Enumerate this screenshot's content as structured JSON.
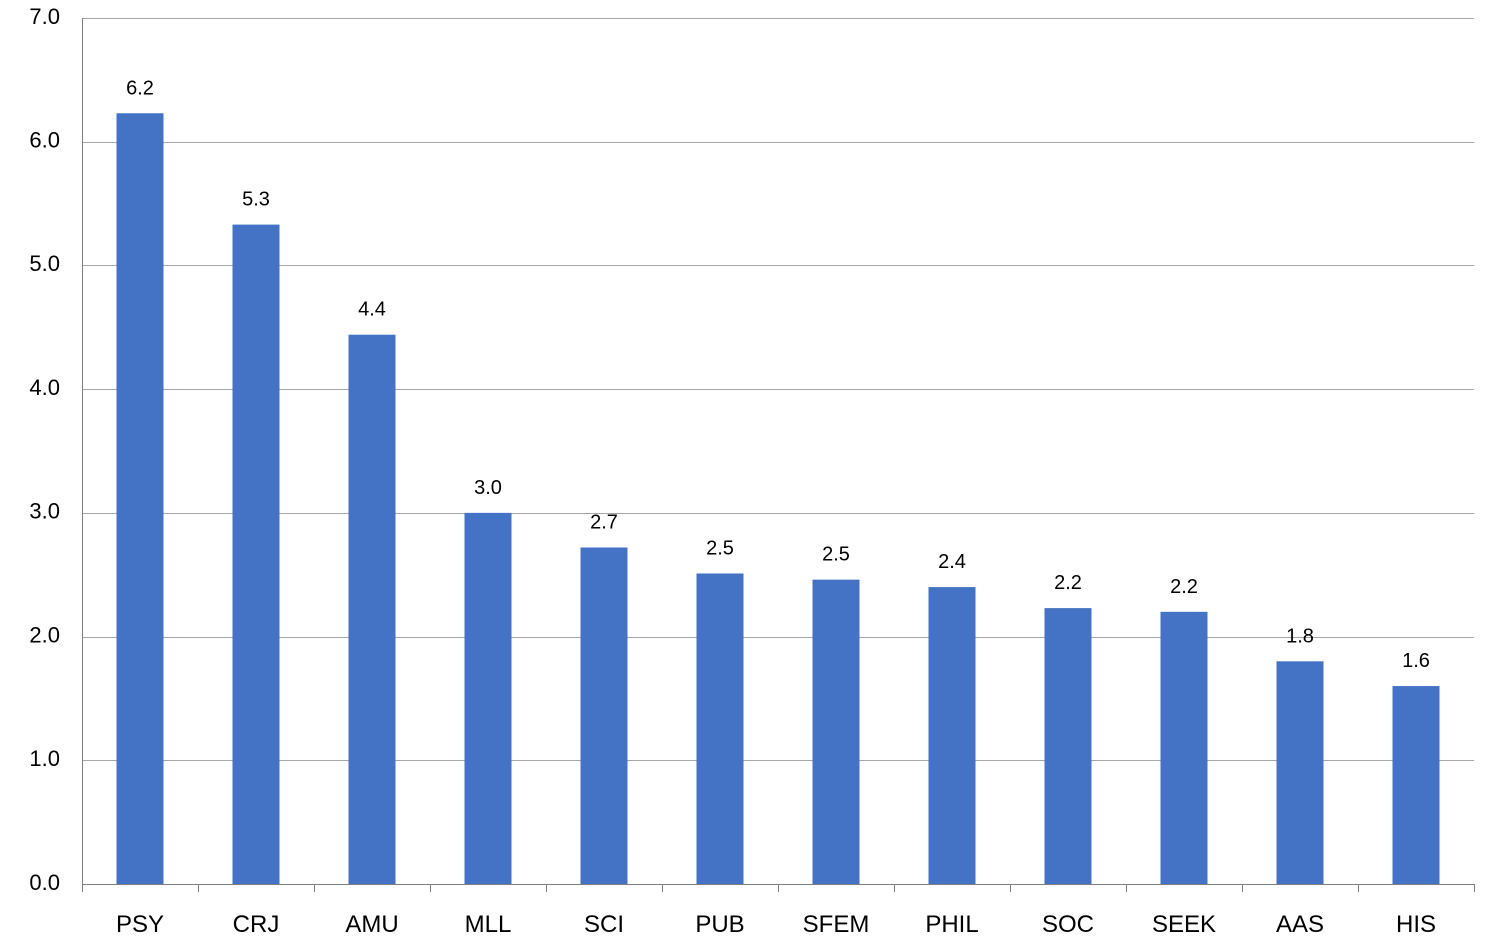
{
  "chart_data": {
    "type": "bar",
    "title": "",
    "xlabel": "",
    "ylabel": "",
    "categories": [
      "PSY",
      "CRJ",
      "AMU",
      "MLL",
      "SCI",
      "PUB",
      "SFEM",
      "PHIL",
      "SOC",
      "SEEK",
      "AAS",
      "HIS"
    ],
    "values": [
      6.23,
      5.33,
      4.44,
      3.0,
      2.72,
      2.51,
      2.46,
      2.4,
      2.23,
      2.2,
      1.8,
      1.6
    ],
    "data_labels": [
      "6.2",
      "5.3",
      "4.4",
      "3.0",
      "2.7",
      "2.5",
      "2.5",
      "2.4",
      "2.2",
      "2.2",
      "1.8",
      "1.6"
    ],
    "ylim": [
      0,
      7
    ],
    "yticks": [
      0,
      1,
      2,
      3,
      4,
      5,
      6,
      7
    ],
    "ytick_labels": [
      "0.0",
      "1.0",
      "2.0",
      "3.0",
      "4.0",
      "5.0",
      "6.0",
      "7.0"
    ],
    "grid": true,
    "legend": "none",
    "bar_color": "#4472C4"
  }
}
